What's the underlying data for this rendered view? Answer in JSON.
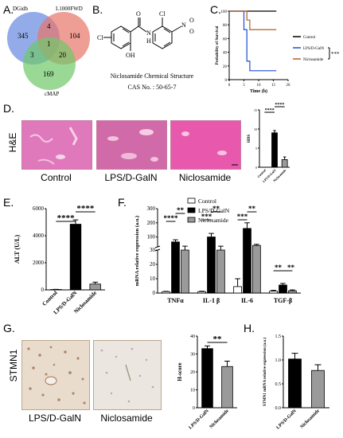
{
  "panels": {
    "A": "A.",
    "B": "B.",
    "C": "C.",
    "D": "D.",
    "E": "E.",
    "F": "F.",
    "G": "G.",
    "H": "H."
  },
  "venn": {
    "sets": [
      "DGidb",
      "L1000FWD",
      "cMAP"
    ],
    "regions": [
      "345",
      "4",
      "104",
      "1",
      "3",
      "20",
      "169"
    ],
    "colors": {
      "DGidb": "#3f5fbf",
      "L1000FWD": "#d9463d",
      "cMAP": "#37a33a"
    }
  },
  "structure": {
    "caption": "Niclosamide Chemical Structure",
    "cas": "CAS No. : 50-65-7",
    "atoms": [
      "Cl",
      "O",
      "Cl",
      "N",
      "H",
      "OH",
      "N",
      "O",
      "O"
    ]
  },
  "survival": {
    "ylabel": "Probability of Survival",
    "xlabel": "Time  (h)",
    "yticks": [
      "0",
      "20",
      "40",
      "60",
      "80",
      "100"
    ],
    "xticks": [
      "0",
      "5",
      "10",
      "15",
      "20"
    ],
    "legend": [
      "Control",
      "LPS/D-GalN",
      "Niclosamide"
    ],
    "sig": "***",
    "colors": {
      "Control": "#000000",
      "LPS/D-GalN": "#1f4fd6",
      "Niclosamide": "#b0602a"
    }
  },
  "he": {
    "row_label": "H&E",
    "labels": [
      "Control",
      "LPS/D-GalN",
      "Niclosamide"
    ],
    "scale_bar": "100",
    "hds": {
      "ylabel": "HDS",
      "yticks": [
        "0",
        "5",
        "10",
        "15"
      ],
      "categories": [
        "Control",
        "LPS/D-GalN",
        "Niclosamide"
      ],
      "sig": [
        "****",
        "****"
      ]
    }
  },
  "alt": {
    "ylabel": "ALT (U/L)",
    "yticks": [
      "0",
      "2000",
      "4000",
      "6000"
    ],
    "categories": [
      "Control",
      "LPS/D-GalN",
      "Niclosamide"
    ],
    "sig": [
      "****",
      "****"
    ]
  },
  "mrna": {
    "ylabel": "mRNA relative expression (a.u.)",
    "yticks": [
      "0",
      "10",
      "20",
      "30",
      "100",
      "200",
      "300"
    ],
    "categories": [
      "TNFα",
      "IL-1 β",
      "IL-6",
      "TGF-β"
    ],
    "legend": [
      "Control",
      "LPS/D-GalN",
      "Niclosamide"
    ],
    "sig": [
      "****",
      "**",
      "***",
      "**",
      "***",
      "**",
      "**",
      "**"
    ]
  },
  "ihc": {
    "row_label": "STMN1",
    "labels": [
      "LPS/D-GalN",
      "Niclosamide"
    ],
    "hscore": {
      "ylabel": "H-score",
      "yticks": [
        "0",
        "10",
        "20",
        "30",
        "40"
      ],
      "categories": [
        "LPS/D-GalN",
        "Niclosamide"
      ],
      "sig": "**"
    }
  },
  "stmn1_mrna": {
    "ylabel": "STMN1 mRNA relative expression (a.u.)",
    "yticks": [
      "0.0",
      "0.5",
      "1.0",
      "1.5"
    ],
    "categories": [
      "LPS/D-GalN",
      "Niclosamide"
    ]
  },
  "chart_data": [
    {
      "type": "line",
      "title": "",
      "xlabel": "Time  (h)",
      "ylabel": "Probability of Survival",
      "xlim": [
        0,
        20
      ],
      "ylim": [
        0,
        100
      ],
      "series": [
        {
          "name": "Control",
          "x": [
            0,
            16
          ],
          "y": [
            100,
            100
          ]
        },
        {
          "name": "LPS/D-GalN",
          "x": [
            0,
            5,
            5,
            6,
            6,
            7,
            7,
            16
          ],
          "y": [
            100,
            100,
            73,
            73,
            27,
            27,
            13,
            13
          ]
        },
        {
          "name": "Niclosamide",
          "x": [
            0,
            6,
            6,
            7,
            7,
            16
          ],
          "y": [
            100,
            100,
            87,
            87,
            73,
            73
          ]
        }
      ]
    },
    {
      "type": "bar",
      "ylabel": "HDS",
      "categories": [
        "Control",
        "LPS/D-GalN",
        "Niclosamide"
      ],
      "values": [
        0,
        9,
        2
      ],
      "errors": [
        0,
        0.6,
        0.7
      ],
      "ylim": [
        0,
        15
      ]
    },
    {
      "type": "bar",
      "ylabel": "ALT (U/L)",
      "categories": [
        "Control",
        "LPS/D-GalN",
        "Niclosamide"
      ],
      "values": [
        30,
        4850,
        430
      ],
      "errors": [
        10,
        320,
        140
      ],
      "ylim": [
        0,
        6000
      ]
    },
    {
      "type": "bar",
      "ylabel": "mRNA relative expression (a.u.)",
      "categories": [
        "TNFα",
        "IL-1 β",
        "IL-6",
        "TGF-β"
      ],
      "series": [
        {
          "name": "Control",
          "values": [
            1.0,
            1.0,
            4.5,
            1.3
          ],
          "errors": [
            0.2,
            0.3,
            5.5,
            0.6
          ]
        },
        {
          "name": "LPS/D-GalN",
          "values": [
            65,
            100,
            160,
            5.6
          ],
          "errors": [
            15,
            25,
            40,
            1.1
          ]
        },
        {
          "name": "Niclosamide",
          "values": [
            30,
            30,
            40,
            1.6
          ],
          "errors": [
            5,
            5,
            8,
            0.6
          ]
        }
      ]
    },
    {
      "type": "bar",
      "ylabel": "H-score",
      "categories": [
        "LPS/D-GalN",
        "Niclosamide"
      ],
      "values": [
        33,
        23
      ],
      "errors": [
        1.5,
        3
      ],
      "ylim": [
        0,
        40
      ]
    },
    {
      "type": "bar",
      "ylabel": "STMN1 mRNA relative expression (a.u.)",
      "categories": [
        "LPS/D-GalN",
        "Niclosamide"
      ],
      "values": [
        1.02,
        0.78
      ],
      "errors": [
        0.12,
        0.12
      ],
      "ylim": [
        0,
        1.5
      ]
    }
  ]
}
